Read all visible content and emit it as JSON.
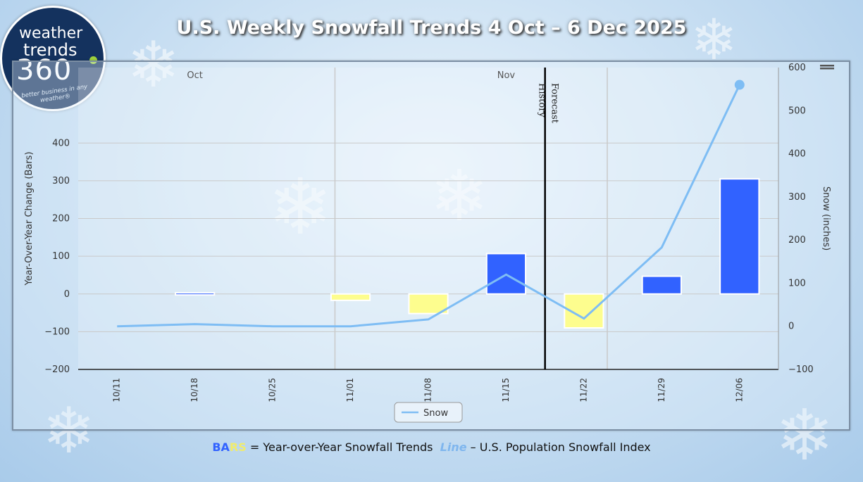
{
  "title": "U.S. Weekly Snowfall Trends 4 Oct – 6 Dec 2025",
  "logo": {
    "line1": "weather",
    "line2": "trends",
    "line3": "360",
    "tagline": "better business in any weather®"
  },
  "caption": {
    "bars_part1": "BA",
    "bars_part2": "RS",
    "bars_text": " = Year-over-Year Snowfall Trends  ",
    "line_word": "Line",
    "line_text": " – U.S. Population Snowfall Index"
  },
  "colors": {
    "positive_bar": "#3162ff",
    "negative_bar": "#fdfd8e",
    "line": "#7ebdf4",
    "divider": "#000000"
  },
  "chart_data": {
    "type": "bar",
    "categories": [
      "10/11",
      "10/18",
      "10/25",
      "11/01",
      "11/08",
      "11/15",
      "11/22",
      "11/29",
      "12/06"
    ],
    "month_labels": [
      {
        "label": "Oct",
        "category_index": 1
      },
      {
        "label": "Nov",
        "category_index": 5
      }
    ],
    "ylabel": "Year-Over-Year Change (Bars)",
    "ylim": [
      -200,
      600
    ],
    "yticks": [
      -200,
      -100,
      0,
      100,
      200,
      300,
      400
    ],
    "y2label": "Snow (inches)",
    "y2lim": [
      -100,
      600
    ],
    "y2ticks": [
      -100,
      0,
      100,
      200,
      300,
      400,
      500,
      600
    ],
    "divider": {
      "after_category_index": 5.5,
      "left_label": "History",
      "right_label": "Forecast"
    },
    "series": [
      {
        "axis": "left",
        "kind": "bar",
        "values": [
          0,
          3,
          0,
          -17,
          -52,
          107,
          -90,
          47,
          305
        ]
      },
      {
        "axis": "right",
        "kind": "line",
        "name": "Snow",
        "values": [
          0,
          5,
          0,
          0,
          16,
          120,
          18,
          183,
          560
        ]
      }
    ],
    "legend": {
      "position": "bottom-center"
    },
    "grid": true
  }
}
